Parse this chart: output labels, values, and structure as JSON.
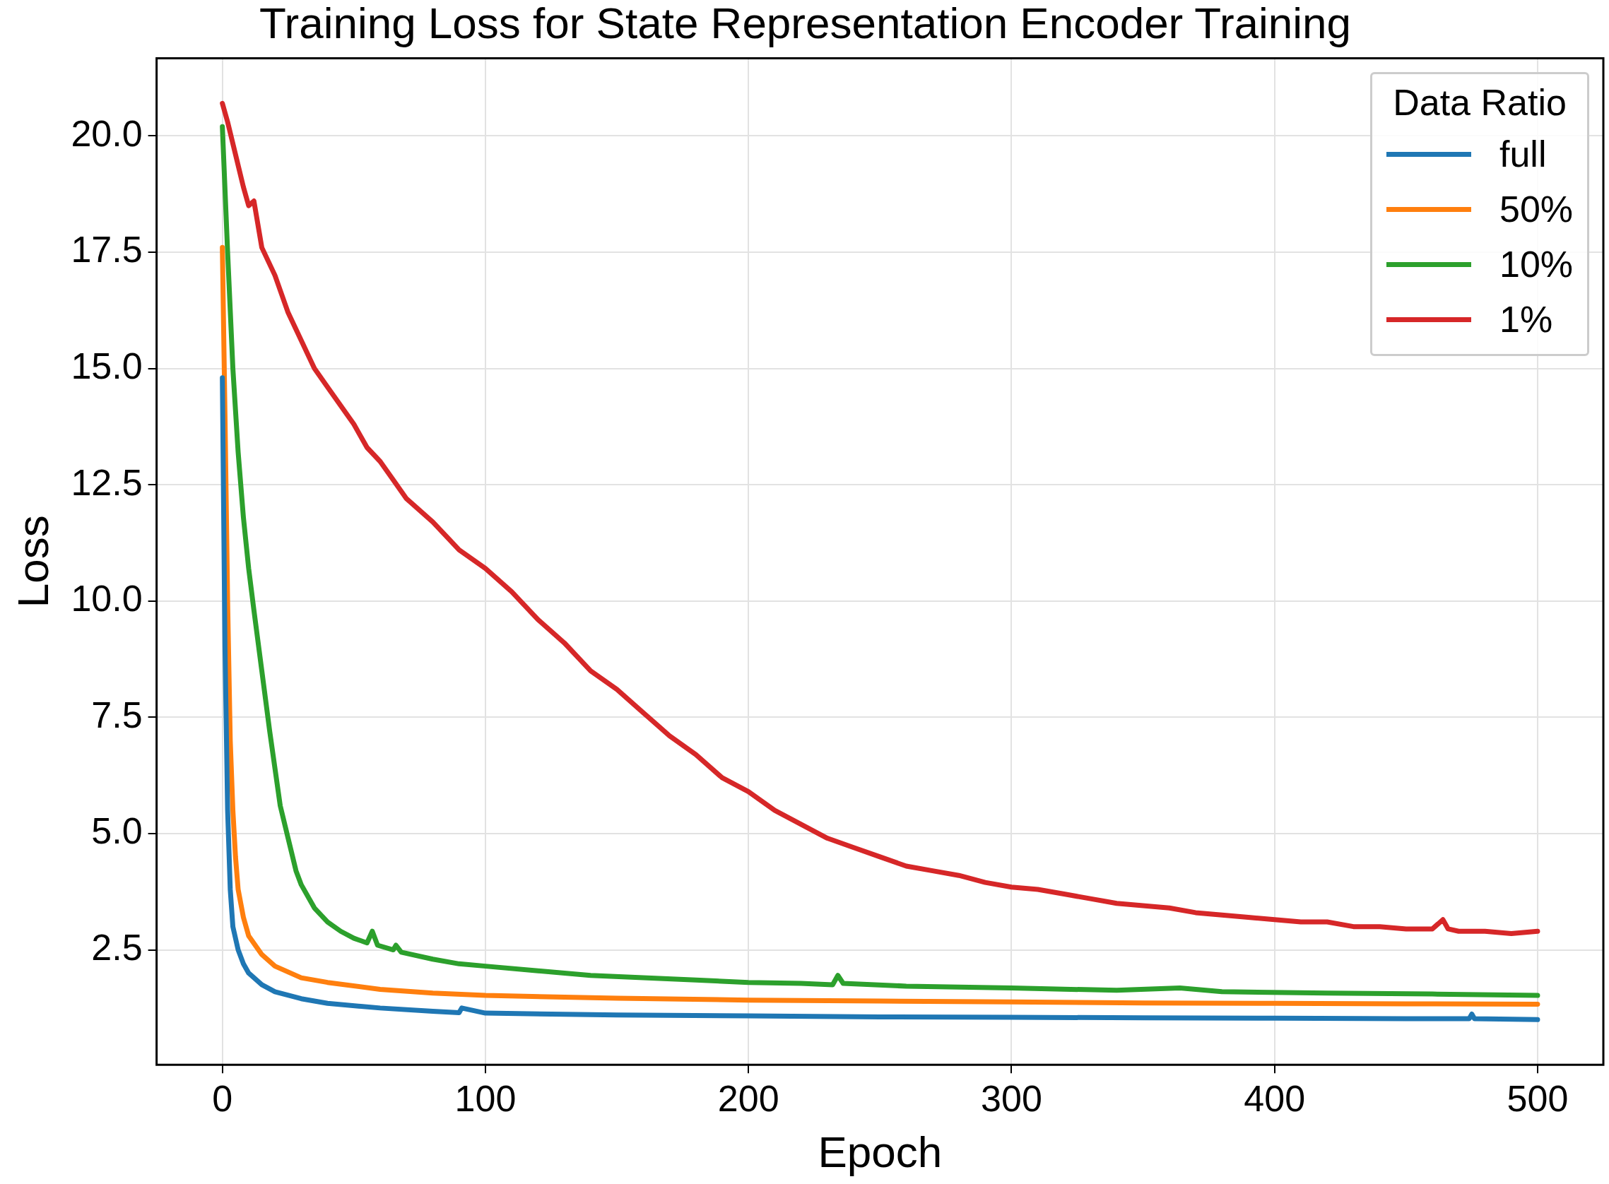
{
  "chart_data": {
    "type": "line",
    "title": "Training Loss for State Representation Encoder Training",
    "xlabel": "Epoch",
    "ylabel": "Loss",
    "legend_title": "Data Ratio",
    "legend": "top right",
    "grid": true,
    "marker": "none",
    "line_style": "solid",
    "xlim": [
      -25,
      525
    ],
    "xticks": [
      0,
      100,
      200,
      300,
      400,
      500
    ],
    "ylim": [
      0.03,
      21.67
    ],
    "yticks": [
      2.5,
      {
        "value": 5,
        "label": "5.0"
      },
      7.5,
      {
        "value": 10,
        "label": "10.0"
      },
      12.5,
      {
        "value": 15,
        "label": "15.0"
      },
      17.5,
      {
        "value": 20,
        "label": "20.0"
      }
    ],
    "series": [
      {
        "name": "full",
        "color": "#1f77b4",
        "x": [
          0,
          1,
          2,
          3,
          4,
          6,
          8,
          10,
          15,
          20,
          30,
          40,
          60,
          80,
          90,
          91,
          100,
          150,
          200,
          250,
          300,
          350,
          400,
          450,
          474,
          475,
          476,
          500
        ],
        "values": [
          14.8,
          9,
          5.5,
          3.8,
          3.0,
          2.5,
          2.2,
          2.0,
          1.75,
          1.6,
          1.45,
          1.35,
          1.25,
          1.18,
          1.15,
          1.25,
          1.14,
          1.1,
          1.08,
          1.06,
          1.05,
          1.04,
          1.03,
          1.02,
          1.02,
          1.12,
          1.02,
          1.0
        ]
      },
      {
        "name": "50%",
        "color": "#ff7f0e",
        "x": [
          0,
          1,
          2,
          3,
          4,
          5,
          6,
          8,
          10,
          15,
          20,
          30,
          40,
          60,
          80,
          100,
          150,
          200,
          250,
          300,
          350,
          400,
          450,
          500
        ],
        "values": [
          17.6,
          14,
          10,
          7,
          5.5,
          4.5,
          3.8,
          3.2,
          2.8,
          2.4,
          2.15,
          1.9,
          1.8,
          1.65,
          1.57,
          1.52,
          1.46,
          1.42,
          1.4,
          1.38,
          1.36,
          1.35,
          1.34,
          1.33
        ]
      },
      {
        "name": "10%",
        "color": "#2ca02c",
        "x": [
          0,
          2,
          4,
          6,
          8,
          10,
          12,
          15,
          18,
          20,
          22,
          25,
          28,
          30,
          35,
          40,
          45,
          50,
          55,
          57,
          59,
          65,
          66,
          68,
          80,
          90,
          100,
          120,
          140,
          160,
          180,
          200,
          220,
          232,
          234,
          236,
          260,
          300,
          340,
          364,
          380,
          420,
          460,
          500
        ],
        "values": [
          20.2,
          17.5,
          15.0,
          13.2,
          11.8,
          10.7,
          9.8,
          8.5,
          7.2,
          6.4,
          5.6,
          4.9,
          4.2,
          3.9,
          3.4,
          3.1,
          2.9,
          2.75,
          2.65,
          2.9,
          2.6,
          2.5,
          2.6,
          2.45,
          2.3,
          2.2,
          2.15,
          2.05,
          1.95,
          1.9,
          1.85,
          1.8,
          1.78,
          1.75,
          1.95,
          1.78,
          1.72,
          1.68,
          1.63,
          1.68,
          1.6,
          1.57,
          1.55,
          1.52
        ]
      },
      {
        "name": "1%",
        "color": "#d62728",
        "x": [
          0,
          2,
          5,
          8,
          10,
          12,
          15,
          20,
          25,
          30,
          35,
          40,
          45,
          50,
          55,
          60,
          65,
          70,
          80,
          90,
          100,
          110,
          120,
          130,
          140,
          150,
          160,
          170,
          180,
          190,
          200,
          210,
          220,
          230,
          240,
          250,
          260,
          270,
          280,
          290,
          300,
          310,
          320,
          330,
          340,
          350,
          360,
          370,
          380,
          390,
          400,
          410,
          420,
          430,
          440,
          450,
          460,
          464,
          466,
          470,
          480,
          490,
          500
        ],
        "values": [
          20.7,
          20.3,
          19.6,
          18.9,
          18.5,
          18.6,
          17.6,
          17.0,
          16.2,
          15.6,
          15.0,
          14.6,
          14.2,
          13.8,
          13.3,
          13.0,
          12.6,
          12.2,
          11.7,
          11.1,
          10.7,
          10.2,
          9.6,
          9.1,
          8.5,
          8.1,
          7.6,
          7.1,
          6.7,
          6.2,
          5.9,
          5.5,
          5.2,
          4.9,
          4.7,
          4.5,
          4.3,
          4.2,
          4.1,
          3.95,
          3.85,
          3.8,
          3.7,
          3.6,
          3.5,
          3.45,
          3.4,
          3.3,
          3.25,
          3.2,
          3.15,
          3.1,
          3.1,
          3.0,
          3.0,
          2.95,
          2.95,
          3.15,
          2.95,
          2.9,
          2.9,
          2.85,
          2.9
        ]
      }
    ]
  }
}
